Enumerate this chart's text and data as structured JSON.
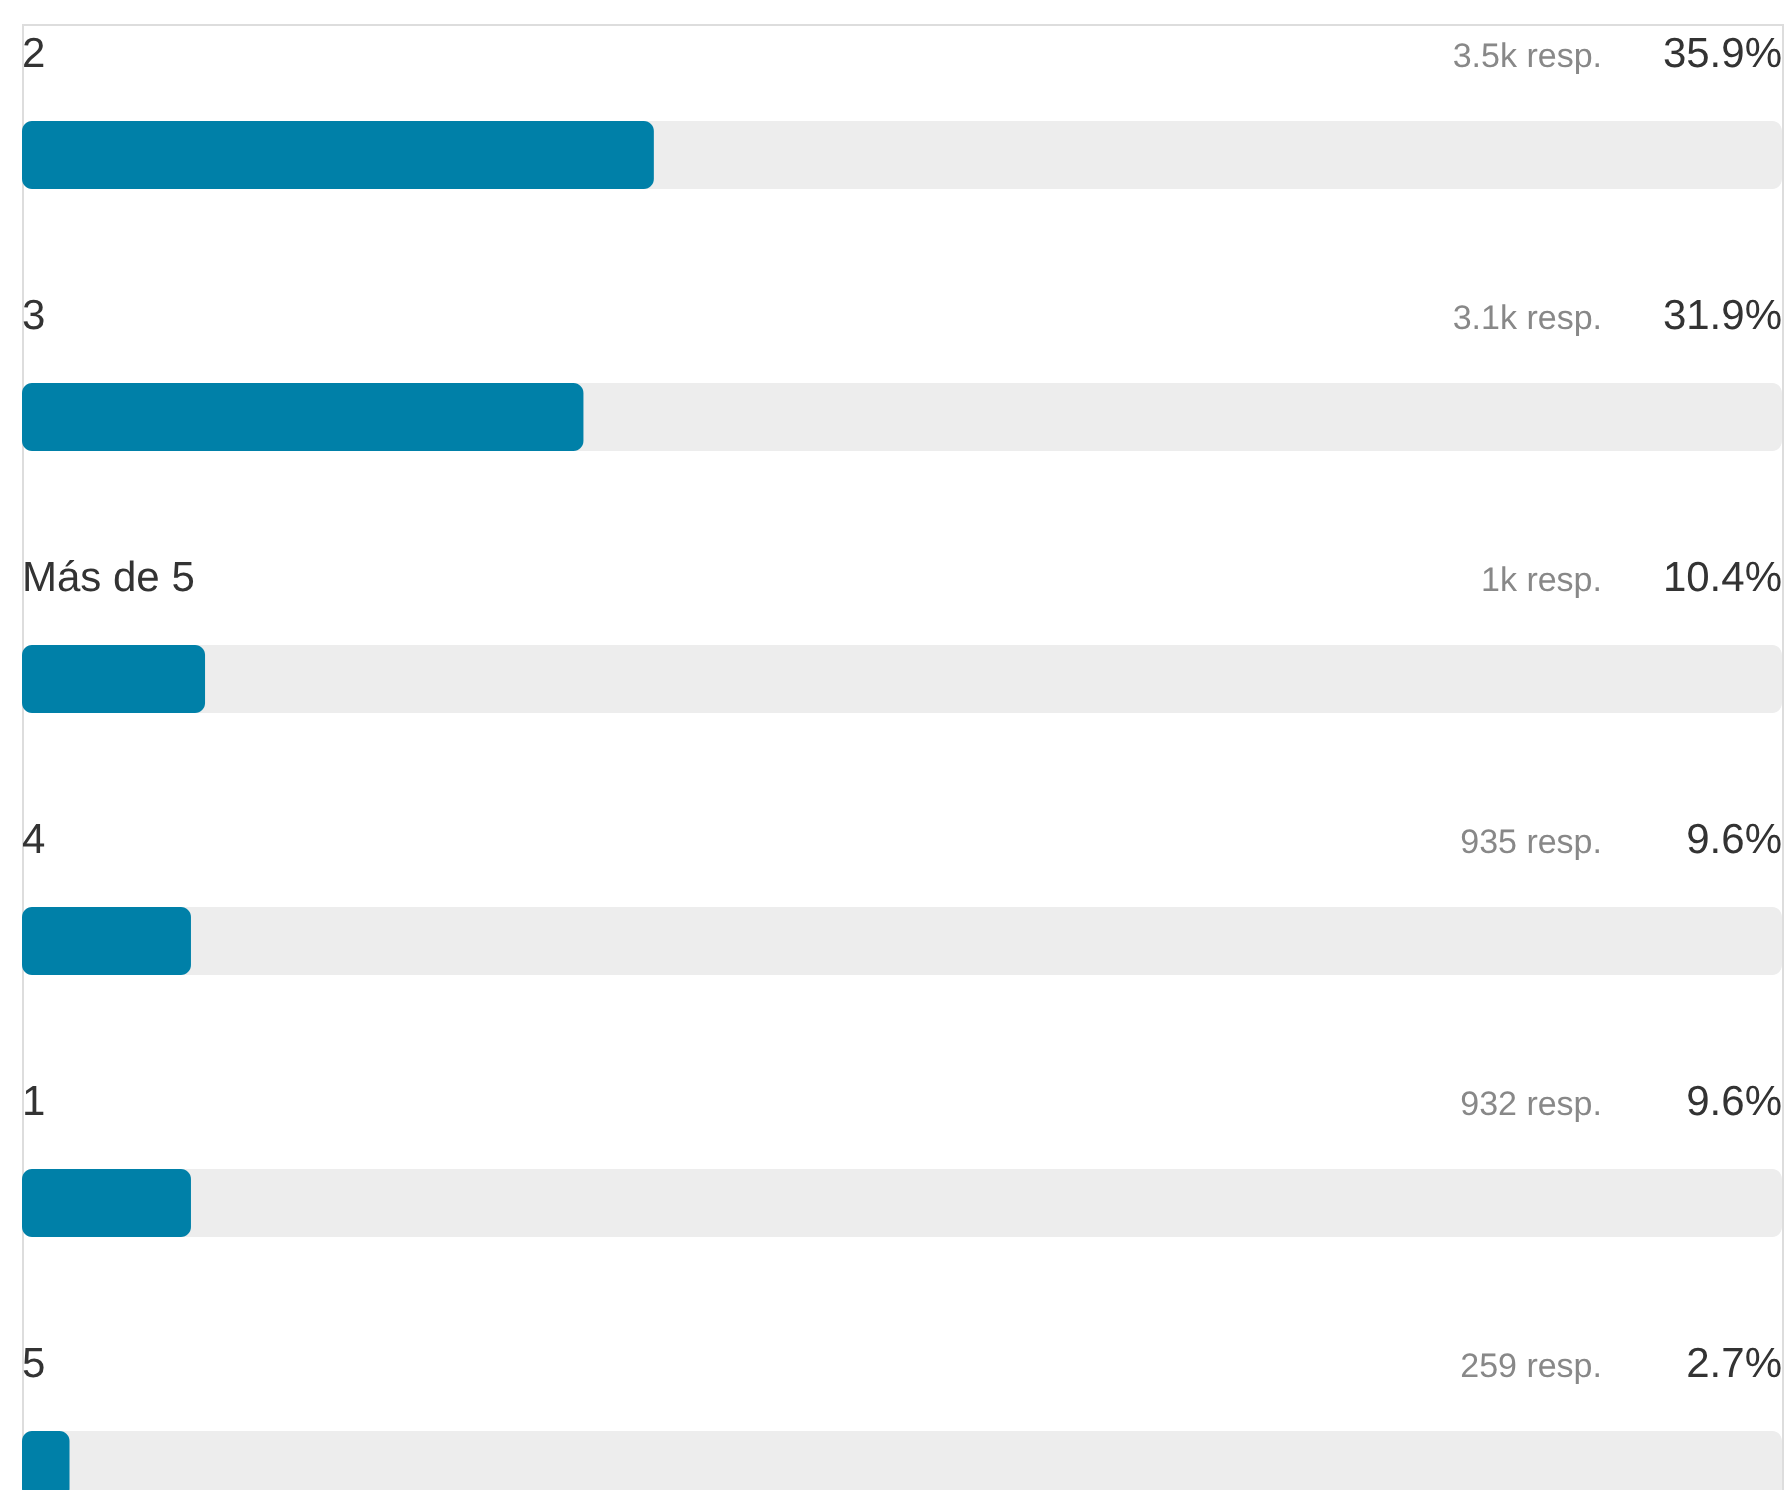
{
  "chart_data": {
    "type": "bar",
    "orientation": "horizontal",
    "categories": [
      "2",
      "3",
      "Más de 5",
      "4",
      "1",
      "5"
    ],
    "values": [
      35.9,
      31.9,
      10.4,
      9.6,
      9.6,
      2.7
    ],
    "color": "#0080a8",
    "value_labels": [
      "35.9%",
      "31.9%",
      "10.4%",
      "9.6%",
      "9.6%",
      "2.7%"
    ],
    "xlim": [
      0,
      100
    ],
    "annotations": [
      "3.5k resp.",
      "3.1k resp.",
      "1k resp.",
      "935 resp.",
      "932 resp.",
      "259 resp."
    ]
  }
}
